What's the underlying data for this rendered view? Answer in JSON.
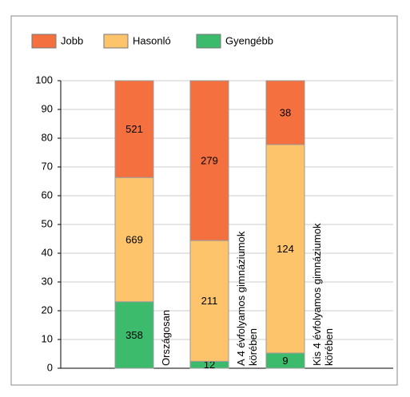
{
  "chart_data": {
    "type": "bar",
    "stack": "percent",
    "categories": [
      "Országosan",
      "A 4 évfolyamos gimnáziumok körében",
      "Kis 4 évfolyamos gimnáziumok körében"
    ],
    "series": [
      {
        "name": "Gyengébb",
        "color": "#3dbb6c",
        "values": [
          358,
          12,
          9
        ]
      },
      {
        "name": "Hasonló",
        "color": "#fdc46c",
        "values": [
          669,
          211,
          124
        ]
      },
      {
        "name": "Jobb",
        "color": "#f5703f",
        "values": [
          521,
          279,
          38
        ]
      }
    ],
    "legend_order": [
      "Jobb",
      "Hasonló",
      "Gyengébb"
    ],
    "ylim": [
      0,
      100
    ],
    "yticks": [
      0,
      10,
      20,
      30,
      40,
      50,
      60,
      70,
      80,
      90,
      100
    ],
    "grid": true
  }
}
